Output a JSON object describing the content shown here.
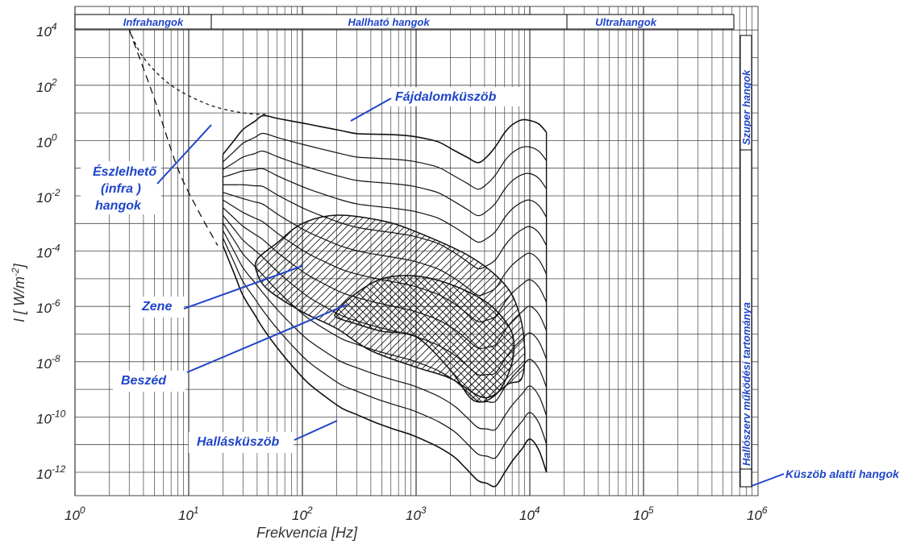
{
  "chart_data": {
    "type": "line",
    "xlabel": "Frekvencia [Hz]",
    "ylabel_main": "I [ W/m",
    "ylabel_exp": "-2",
    "ylabel_end": "]",
    "x_scale": "log",
    "y_scale": "log",
    "xlim": [
      1,
      1000000
    ],
    "ylim": [
      1e-13,
      100000
    ],
    "x_ticks": [
      {
        "base": "10",
        "exp": "0"
      },
      {
        "base": "10",
        "exp": "1"
      },
      {
        "base": "10",
        "exp": "2"
      },
      {
        "base": "10",
        "exp": "3"
      },
      {
        "base": "10",
        "exp": "4"
      },
      {
        "base": "10",
        "exp": "5"
      },
      {
        "base": "10",
        "exp": "6"
      }
    ],
    "y_ticks": [
      {
        "base": "10",
        "exp": "4"
      },
      {
        "base": "10",
        "exp": "2"
      },
      {
        "base": "10",
        "exp": "0"
      },
      {
        "base": "10",
        "exp": "-2"
      },
      {
        "base": "10",
        "exp": "-4"
      },
      {
        "base": "10",
        "exp": "-6"
      },
      {
        "base": "10",
        "exp": "-8"
      },
      {
        "base": "10",
        "exp": "-10"
      },
      {
        "base": "10",
        "exp": "-12"
      }
    ],
    "bands": [
      "Infrahangok",
      "Hallható hangok",
      "Ultrahangok"
    ],
    "side_labels": [
      "Szuper hangok",
      "Hallószerv működési tartománya",
      "Küszöb alatti hangok"
    ],
    "annotations": [
      "Fájdalomküszöb",
      "Észlelhető",
      "(infra )",
      "hangok",
      "Zene",
      "Beszéd",
      "Hallásküszöb"
    ],
    "grid": true,
    "upper_curve": [
      [
        20,
        -0.5
      ],
      [
        30,
        0.4
      ],
      [
        45,
        0.9
      ],
      [
        70,
        0.75
      ],
      [
        110,
        0.6
      ],
      [
        300,
        0.25
      ],
      [
        800,
        0.2
      ],
      [
        1500,
        0
      ],
      [
        2500,
        -0.5
      ],
      [
        3500,
        -0.8
      ],
      [
        4500,
        -0.5
      ],
      [
        6500,
        0.5
      ],
      [
        9000,
        0.8
      ],
      [
        12000,
        0.6
      ],
      [
        14000,
        0.3
      ]
    ],
    "threshold_curve": [
      [
        20,
        -3.8
      ],
      [
        30,
        -5.6
      ],
      [
        50,
        -7.1
      ],
      [
        100,
        -8.6
      ],
      [
        200,
        -9.6
      ],
      [
        500,
        -10.3
      ],
      [
        1000,
        -10.7
      ],
      [
        2000,
        -11.3
      ],
      [
        3500,
        -12.3
      ],
      [
        5000,
        -12.5
      ],
      [
        7000,
        -11.6
      ],
      [
        10000,
        -10.8
      ],
      [
        12000,
        -11.2
      ],
      [
        14000,
        -12
      ]
    ],
    "music_region": [
      [
        40,
        -4.3
      ],
      [
        60,
        -3.7
      ],
      [
        100,
        -3.0
      ],
      [
        200,
        -2.7
      ],
      [
        500,
        -2.9
      ],
      [
        1000,
        -3.3
      ],
      [
        3000,
        -4.2
      ],
      [
        6000,
        -5.2
      ],
      [
        8000,
        -6.2
      ],
      [
        9000,
        -7.5
      ],
      [
        8500,
        -8.6
      ],
      [
        6500,
        -8.8
      ],
      [
        4000,
        -9.3
      ],
      [
        2000,
        -8.6
      ],
      [
        1000,
        -8.2
      ],
      [
        400,
        -7.6
      ],
      [
        200,
        -6.8
      ],
      [
        100,
        -6.2
      ],
      [
        50,
        -5.4
      ],
      [
        40,
        -4.8
      ]
    ],
    "speech_region": [
      [
        200,
        -6.2
      ],
      [
        280,
        -5.6
      ],
      [
        500,
        -5.0
      ],
      [
        1000,
        -4.9
      ],
      [
        2000,
        -5.2
      ],
      [
        4000,
        -5.8
      ],
      [
        6000,
        -6.5
      ],
      [
        7200,
        -7.2
      ],
      [
        6800,
        -8.2
      ],
      [
        5000,
        -9.2
      ],
      [
        3200,
        -9.4
      ],
      [
        2000,
        -8.3
      ],
      [
        1000,
        -7.1
      ],
      [
        500,
        -6.9
      ],
      [
        280,
        -6.6
      ],
      [
        200,
        -6.4
      ]
    ],
    "infra_dashed_1": [
      [
        3,
        4
      ],
      [
        4,
        3
      ],
      [
        7,
        2
      ],
      [
        15,
        1.3
      ],
      [
        30,
        1.0
      ],
      [
        50,
        0.95
      ]
    ],
    "infra_dashed_2": [
      [
        3,
        4
      ],
      [
        5,
        1.5
      ],
      [
        8,
        -1.0
      ],
      [
        12,
        -2.5
      ],
      [
        18,
        -3.8
      ]
    ],
    "colors": {
      "annotation": "#1f45c8",
      "line": "#111111",
      "grid": "#444444"
    }
  }
}
